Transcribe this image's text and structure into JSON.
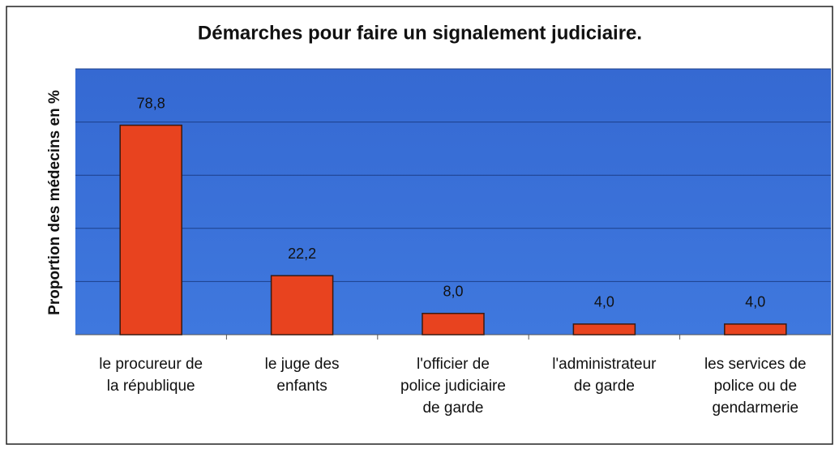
{
  "chart_data": {
    "type": "bar",
    "title": "Démarches pour faire un signalement judiciaire.",
    "y_label": "Proportion des médecins en %",
    "categories": [
      "le procureur de\nla république",
      "le juge des\nenfants",
      "l'officier de\npolice judiciaire\nde garde",
      "l'administrateur\nde garde",
      "les services de\npolice ou de\ngendarmerie"
    ],
    "values": [
      78.8,
      22.2,
      8.0,
      4.0,
      4.0
    ],
    "value_labels": [
      "78,8",
      "22,2",
      "8,0",
      "4,0",
      "4,0"
    ],
    "color": "#e8431f",
    "ylim": [
      0,
      100
    ],
    "yticks": [
      0,
      20,
      40,
      60,
      80,
      100
    ],
    "grid": true
  }
}
